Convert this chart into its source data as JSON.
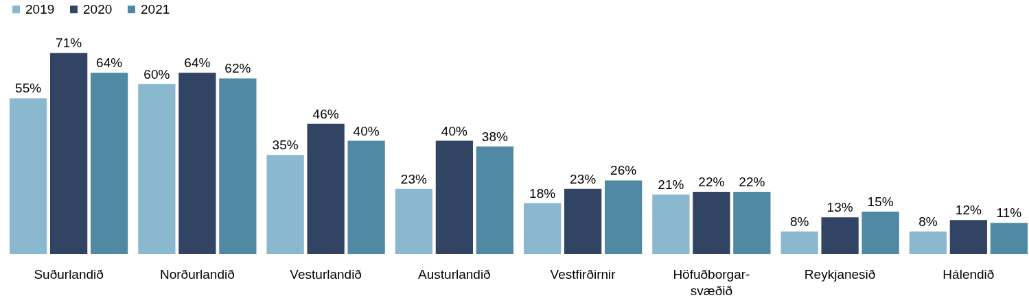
{
  "chart_data": {
    "type": "bar",
    "categories": [
      "Suðurlandið",
      "Norðurlandið",
      "Vesturlandið",
      "Austurlandið",
      "Vestfirðirnir",
      "Höfuðborgar-\nsvæðið",
      "Reykjanesið",
      "Hálendið"
    ],
    "series": [
      {
        "name": "2019",
        "color": "#8ab8cf",
        "values": [
          55,
          60,
          35,
          23,
          18,
          21,
          8,
          8
        ],
        "value_labels": [
          "55%",
          "60%",
          "35%",
          "23%",
          "18%",
          "21%",
          "8%",
          "8%"
        ]
      },
      {
        "name": "2020",
        "color": "#314463",
        "values": [
          71,
          64,
          46,
          40,
          23,
          22,
          13,
          12
        ],
        "value_labels": [
          "71%",
          "64%",
          "46%",
          "40%",
          "23%",
          "22%",
          "13%",
          "12%"
        ]
      },
      {
        "name": "2021",
        "color": "#4f89a3",
        "values": [
          64,
          62,
          40,
          38,
          26,
          22,
          15,
          11
        ],
        "value_labels": [
          "64%",
          "62%",
          "40%",
          "38%",
          "26%",
          "22%",
          "15%",
          "11%"
        ]
      }
    ],
    "legend": "top",
    "grid": false
  }
}
